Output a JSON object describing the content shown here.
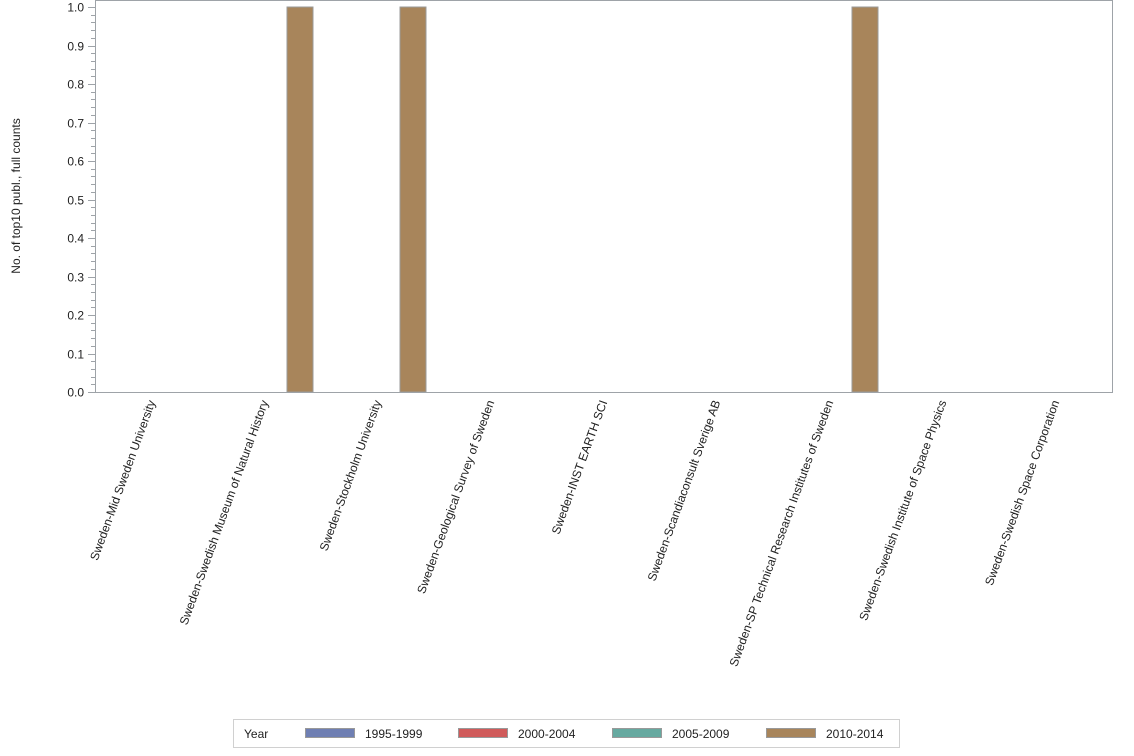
{
  "chart_data": {
    "type": "bar",
    "title": "",
    "xlabel": "",
    "ylabel": "No. of top10 publ., full counts",
    "ylim": [
      0,
      1.0
    ],
    "yticks": [
      "0.0",
      "0.1",
      "0.2",
      "0.3",
      "0.4",
      "0.5",
      "0.6",
      "0.7",
      "0.8",
      "0.9",
      "1.0"
    ],
    "categories": [
      "Sweden-Mid Sweden University",
      "Sweden-Swedish Museum of Natural History",
      "Sweden-Stockholm University",
      "Sweden-Geological Survey of Sweden",
      "Sweden-INST EARTH SCI",
      "Sweden-Scandiaconsult Sverige AB",
      "Sweden-SP Technical Research Institutes of Sweden",
      "Sweden-Swedish Institute of Space Physics",
      "Sweden-Swedish Space Corporation"
    ],
    "series": [
      {
        "name": "1995-1999",
        "color": "#6f7fb3",
        "values": [
          0,
          0,
          0,
          0,
          0,
          0,
          0,
          0,
          0
        ]
      },
      {
        "name": "2000-2004",
        "color": "#d05b5b",
        "values": [
          0,
          0,
          0,
          0,
          0,
          0,
          0,
          0,
          0
        ]
      },
      {
        "name": "2005-2009",
        "color": "#66a9a0",
        "values": [
          0,
          0,
          0,
          0,
          0,
          0,
          0,
          0,
          0
        ]
      },
      {
        "name": "2010-2014",
        "color": "#a8855b",
        "values": [
          0,
          1,
          1,
          0,
          0,
          0,
          1,
          0,
          0
        ]
      }
    ],
    "grid": false,
    "legend_position": "bottom"
  },
  "legend": {
    "title": "Year"
  }
}
